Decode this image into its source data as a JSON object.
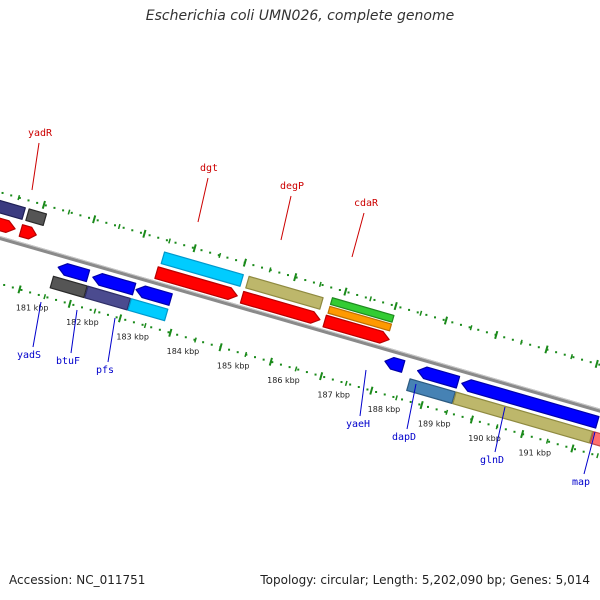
{
  "title": "Escherichia coli UMN026, complete genome",
  "footer": {
    "accession": "Accession: NC_011751",
    "summary": "Topology: circular; Length: 5,202,090 bp; Genes: 5,014"
  },
  "colors": {
    "backbone": "#8a8a8a",
    "tick": "#1a8a1a",
    "label_top": "#cc0000",
    "label_bottom": "#0000cc"
  },
  "scale_labels": [
    "181 kbp",
    "182 kbp",
    "183 kbp",
    "184 kbp",
    "185 kbp",
    "186 kbp",
    "187 kbp",
    "188 kbp",
    "189 kbp",
    "190 kbp",
    "191 kbp"
  ],
  "gene_labels": {
    "top": [
      "yadR",
      "dgt",
      "degP",
      "cdaR"
    ],
    "bottom": [
      "yadS",
      "btuF",
      "pfs",
      "yaeH",
      "dapD",
      "glnD",
      "map"
    ]
  },
  "feature_colors": {
    "red": "#ff0000",
    "darkred": "#b80000",
    "blue": "#0000ff",
    "darkblue": "#0000a8",
    "cyan": "#00ccff",
    "cyan_dark": "#0099cc",
    "khaki": "#bdb76b",
    "khaki_dark": "#8f8a40",
    "green": "#33cc33",
    "green_dark": "#1f8a1f",
    "orange": "#ff9900",
    "orange_dark": "#c07000",
    "gray": "#555555",
    "gray_dark": "#2a2a2a",
    "slate": "#4b4b8f",
    "slate_dark": "#2e2e66",
    "steel": "#4682b4",
    "steel_dark": "#2c5a80",
    "pink": "#ff6f6f",
    "pink_dark": "#c04848",
    "navy": "#3a3a80",
    "navy_dark": "#1f1f55"
  }
}
